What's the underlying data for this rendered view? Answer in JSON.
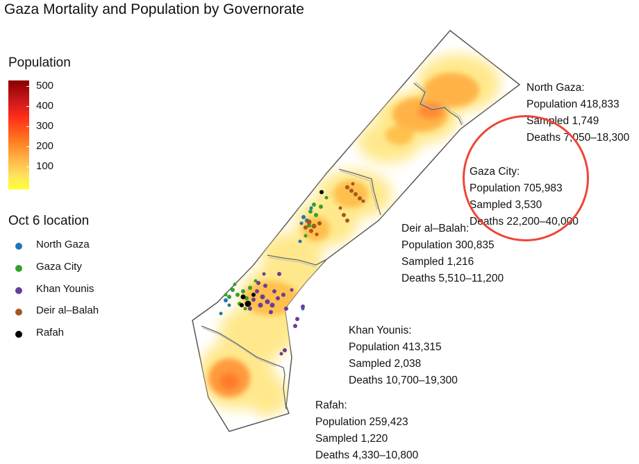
{
  "title": "Gaza Mortality and Population by Governorate",
  "population_legend": {
    "title": "Population",
    "ticks": [
      "500",
      "400",
      "300",
      "200",
      "100"
    ]
  },
  "location_legend": {
    "title": "Oct 6 location",
    "items": [
      {
        "label": "North Gaza",
        "color": "#1f78b4"
      },
      {
        "label": "Gaza City",
        "color": "#33a02c"
      },
      {
        "label": "Khan Younis",
        "color": "#6a3d9a"
      },
      {
        "label": "Deir al–Balah",
        "color": "#a6571f"
      },
      {
        "label": "Rafah",
        "color": "#000000"
      }
    ]
  },
  "governorates": [
    {
      "name": "North Gaza:",
      "population": "Population 418,833",
      "sampled": "Sampled 1,749",
      "deaths": "Deaths 7,050–18,300"
    },
    {
      "name": "Gaza City:",
      "population": "Population 705,983",
      "sampled": "Sampled 3,530",
      "deaths": "Deaths 22,200–40,000"
    },
    {
      "name": "Deir al–Balah:",
      "population": "Population 300,835",
      "sampled": "Sampled 1,216",
      "deaths": "Deaths 5,510–11,200"
    },
    {
      "name": "Khan Younis:",
      "population": "Population 413,315",
      "sampled": "Sampled 2,038",
      "deaths": "Deaths 10,700–19,300"
    },
    {
      "name": "Rafah:",
      "population": "Population 259,423",
      "sampled": "Sampled 1,220",
      "deaths": "Deaths 4,330–10,800"
    }
  ],
  "highlight_color": "#ef4437",
  "highlighted_governorate": "Gaza City"
}
